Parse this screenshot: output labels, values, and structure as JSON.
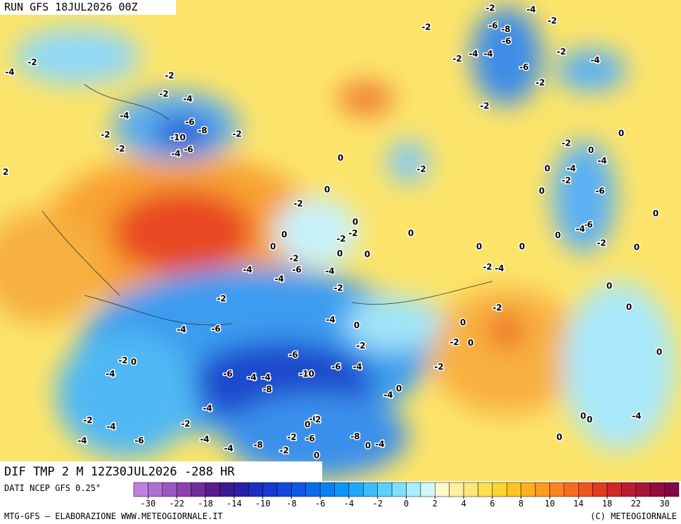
{
  "header": {
    "run": "RUN GFS 18JUL2026 00Z",
    "field": "DIF TMP 2 M 12Z30JUL2026 -288 HR"
  },
  "footer": {
    "source": "DATI NCEP GFS 0.25°",
    "credit": "MTG-GFS — ELABORAZIONE WWW.METEOGIORNALE.IT",
    "copyright": "(C) METEOGIORNALE"
  },
  "colorbar": {
    "colors": [
      "#c080e0",
      "#b070d0",
      "#9a58c0",
      "#8a40b0",
      "#702c98",
      "#5a1c88",
      "#3a1a90",
      "#2a20a8",
      "#1e2cc0",
      "#1838d0",
      "#1448dc",
      "#1058e6",
      "#0c6cee",
      "#0a80f4",
      "#1094f6",
      "#20a8f8",
      "#3cbcf8",
      "#5cd0fa",
      "#80e0fa",
      "#a8eefc",
      "#d0f8fc",
      "#fcf8c8",
      "#fcf0a0",
      "#fce878",
      "#fce050",
      "#fcd430",
      "#fcc420",
      "#fcb020",
      "#fc9a20",
      "#fa8420",
      "#f46c20",
      "#ec5420",
      "#e03c20",
      "#d02828",
      "#bc1c30",
      "#a81438",
      "#940c40",
      "#800848"
    ],
    "labels": [
      -30,
      -22,
      -18,
      -14,
      -10,
      -8,
      -6,
      -4,
      -2,
      0,
      2,
      4,
      6,
      8,
      10,
      14,
      18,
      22,
      30
    ]
  },
  "contour_labels": [
    -2,
    -4,
    -2,
    -2,
    -6,
    -8,
    -6,
    -4,
    -4,
    -2,
    -2,
    -4,
    -4,
    -2,
    -2,
    -6,
    -2,
    -2,
    -4,
    -2,
    -4,
    -6,
    -2,
    -10,
    -8,
    -2,
    0,
    -2,
    -2,
    -4,
    -6,
    0,
    0,
    -4,
    2,
    -2,
    -4,
    0,
    0,
    0,
    -2,
    -6,
    -2,
    0,
    0,
    -6,
    -4,
    0,
    -2,
    -2,
    0,
    0,
    0,
    -2,
    0,
    0,
    0,
    -2,
    0,
    0,
    -4,
    -6,
    -4,
    -2,
    -4,
    -4,
    -2,
    0,
    -2,
    -2,
    0,
    -4,
    0,
    0,
    -4,
    -6,
    -2,
    0,
    -2,
    0,
    -2,
    0,
    -6,
    -4,
    -6,
    -6,
    -4,
    -2,
    -10,
    -4,
    -4,
    -8,
    0,
    -4,
    -4,
    -2,
    -4,
    -2,
    -6,
    0,
    2,
    0,
    0,
    -4,
    -4,
    -6,
    -4,
    -2,
    -6,
    -8,
    -4,
    -8,
    -2,
    0,
    0,
    -4,
    0
  ]
}
